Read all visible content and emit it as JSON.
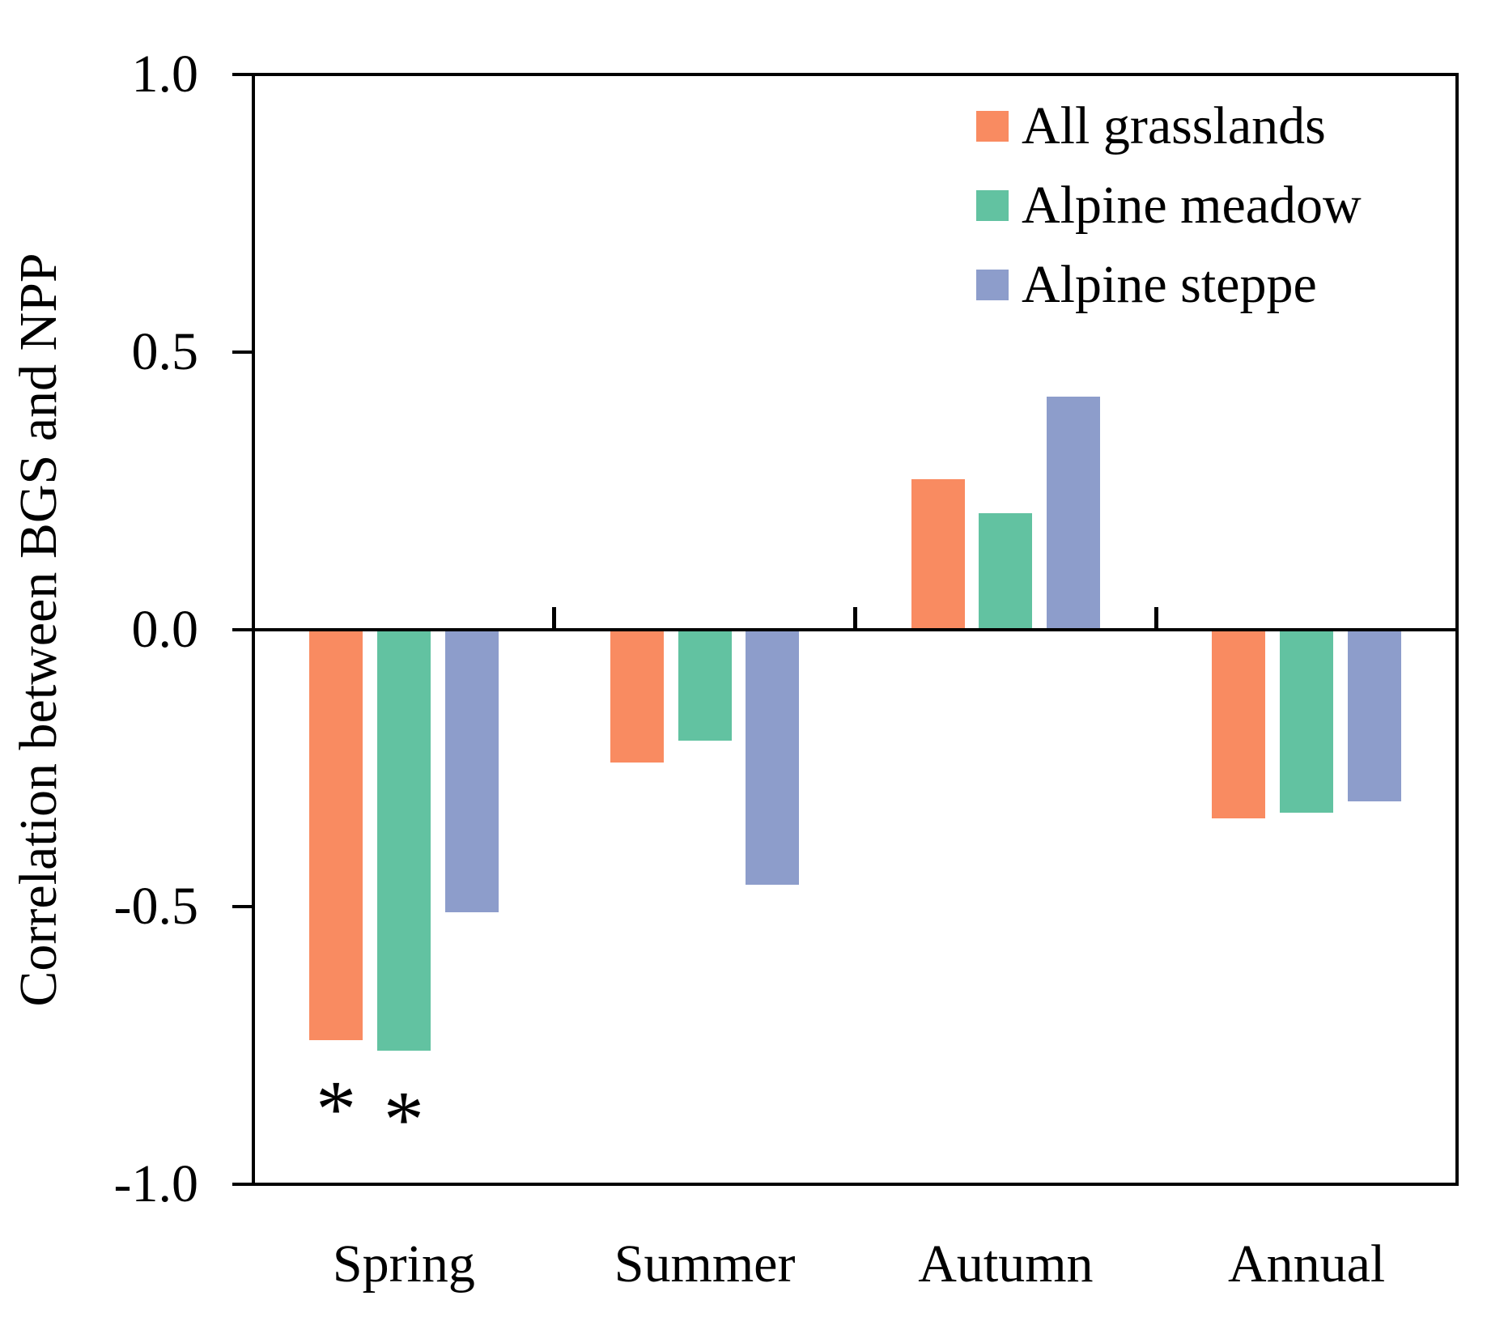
{
  "chart_data": {
    "type": "bar",
    "title": "",
    "categories": [
      "Spring",
      "Summer",
      "Autumn",
      "Annual"
    ],
    "series": [
      {
        "name": "All grasslands",
        "color": "#F98B61",
        "values": [
          -0.74,
          -0.24,
          0.27,
          -0.34
        ]
      },
      {
        "name": "Alpine meadow",
        "color": "#62C2A1",
        "values": [
          -0.76,
          -0.2,
          0.21,
          -0.33
        ]
      },
      {
        "name": "Alpine steppe",
        "color": "#8D9DCB",
        "values": [
          -0.51,
          -0.46,
          0.42,
          -0.31
        ]
      }
    ],
    "xlabel": "",
    "ylabel": "Correlation between BGS and NPP",
    "ylim": [
      -1.0,
      1.0
    ],
    "yticks": [
      1.0,
      0.5,
      0.0,
      -0.5,
      -1.0
    ],
    "ytick_labels": [
      "1.0",
      "0.5",
      "0.0",
      "-0.5",
      "-1.0"
    ],
    "grid": false,
    "legend_position": "top-right",
    "axis_color": "#000000",
    "annotations": [
      {
        "text": "*",
        "category": "Spring",
        "series": "All grasslands"
      },
      {
        "text": "*",
        "category": "Spring",
        "series": "Alpine meadow"
      }
    ]
  }
}
